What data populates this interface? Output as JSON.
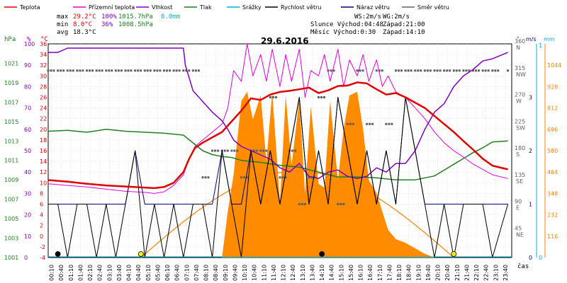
{
  "legend": [
    {
      "label": "Teplota",
      "color": "#e00000"
    },
    {
      "label": "Přízemní teplota",
      "color": "#e000e0"
    },
    {
      "label": "Vlhkost",
      "color": "#8000c0"
    },
    {
      "label": "Tlak",
      "color": "#208020"
    },
    {
      "label": "Srážky",
      "color": "#00b0d0"
    },
    {
      "label": "Rychlost větru",
      "color": "#000000"
    },
    {
      "label": "Náraz větru",
      "color": "#000080"
    },
    {
      "label": "Směr větru",
      "color": "#606060"
    }
  ],
  "stats": {
    "max_label": "max",
    "max_temp": "29.2°C",
    "max_hum": "100%",
    "max_press": "1015.7hPa",
    "max_rain": "0.0mm",
    "min_label": "min",
    "min_temp": "8.0°C",
    "min_hum": "36%",
    "min_press": "1008.5hPa",
    "avg_label": "avg",
    "avg_temp": "18.3°C"
  },
  "info": {
    "ws": "WS:2m/s",
    "wg": "WG:2m/s",
    "sun": "Slunce Východ:04:48",
    "sun_set": "Západ:21:00",
    "moon": "Měsíc  Východ:0:30",
    "moon_set": "Západ:14:10"
  },
  "date_title": "29.6.2016",
  "axis_units": {
    "hpa": "hPa",
    "pct": "%",
    "deg": "°C",
    "deg_r": "°",
    "ms": "m/s",
    "mm": "mm",
    "time": "čas"
  },
  "colors": {
    "temp": "#e00000",
    "ground": "#e000e0",
    "hum": "#8000c0",
    "press": "#208020",
    "rain": "#00b0d0",
    "wind": "#000000",
    "gust": "#000080",
    "dir": "#606060",
    "solar": "#ff8000",
    "solar_fill": "#ff8c00",
    "sun_dot": "#f0f000"
  },
  "chart_data": {
    "type": "line",
    "title": "29.6.2016",
    "x_ticks": [
      "00:10",
      "00:40",
      "01:10",
      "01:40",
      "02:10",
      "02:40",
      "03:10",
      "03:40",
      "04:10",
      "04:40",
      "05:10",
      "05:40",
      "06:10",
      "06:40",
      "07:10",
      "07:40",
      "08:10",
      "08:40",
      "09:10",
      "09:40",
      "10:10",
      "10:40",
      "11:10",
      "11:40",
      "12:10",
      "12:40",
      "13:10",
      "13:40",
      "14:10",
      "14:40",
      "15:10",
      "15:40",
      "16:10",
      "16:40",
      "17:10",
      "17:40",
      "18:10",
      "18:40",
      "19:10",
      "19:40",
      "20:10",
      "20:40",
      "21:10",
      "21:40",
      "22:10",
      "22:40",
      "23:10",
      "23:40"
    ],
    "axes": {
      "pressure_hpa": {
        "ticks": [
          "1001",
          "1003",
          "1005",
          "1007",
          "1009",
          "1011",
          "1013",
          "1015",
          "1017",
          "1019",
          "1021"
        ],
        "range": [
          1001,
          1023
        ]
      },
      "humidity_pct": {
        "ticks": [
          "0",
          "10",
          "20",
          "30",
          "40",
          "50",
          "60",
          "70",
          "80",
          "90",
          "100"
        ],
        "range": [
          0,
          100
        ]
      },
      "temperature_c": {
        "ticks": [
          "-4",
          "-2",
          "0",
          "2",
          "4",
          "6",
          "8",
          "10",
          "12",
          "14",
          "16",
          "18",
          "20",
          "22",
          "24",
          "26",
          "28",
          "30",
          "32",
          "34",
          "36"
        ],
        "range": [
          -4,
          36
        ]
      },
      "wind_dir_deg": {
        "ticks": [
          {
            "v": "45",
            "d": "NE"
          },
          {
            "v": "90",
            "d": "E"
          },
          {
            "v": "135",
            "d": "SE"
          },
          {
            "v": "180",
            "d": "S"
          },
          {
            "v": "225",
            "d": "SW"
          },
          {
            "v": "270",
            "d": "W"
          },
          {
            "v": "315",
            "d": "NW"
          },
          {
            "v": "360",
            "d": "N"
          }
        ],
        "range": [
          0,
          360
        ]
      },
      "wind_ms": {
        "ticks": [
          "0",
          "1",
          "2",
          "3"
        ],
        "range": [
          0,
          4
        ]
      },
      "rain_mm": {
        "ticks": [
          "0",
          "1"
        ],
        "range": [
          0,
          1
        ]
      },
      "solar": {
        "ticks": [
          "116",
          "232",
          "348",
          "464",
          "580",
          "696",
          "812",
          "928",
          "1044"
        ],
        "range": [
          0,
          1160
        ]
      }
    },
    "series": [
      {
        "name": "Teplota",
        "axis": "temperature_c",
        "x": [
          0,
          1,
          2,
          3,
          4,
          5,
          5.5,
          6,
          6.5,
          7,
          7.3,
          7.6,
          8,
          8.5,
          9,
          9.5,
          10,
          10.5,
          11,
          11.5,
          12,
          12.5,
          13,
          13.5,
          14,
          14.5,
          15,
          15.5,
          16,
          16.5,
          17,
          17.5,
          18,
          18.5,
          19,
          19.5,
          20,
          20.5,
          21,
          21.5,
          22,
          22.5,
          23,
          23.8
        ],
        "y": [
          10.5,
          10.2,
          9.8,
          9.5,
          9.3,
          9.1,
          9.0,
          9.2,
          10,
          12,
          14.5,
          16.5,
          17.5,
          18.5,
          19.5,
          21.5,
          23.5,
          25.8,
          25.5,
          26.5,
          27,
          27.2,
          27.5,
          27.8,
          26.8,
          27.3,
          28.1,
          28.2,
          28.8,
          28.6,
          27.5,
          26.5,
          26.8,
          26,
          25,
          24,
          22.5,
          21,
          19.5,
          17.8,
          16.2,
          14.5,
          13.2,
          12.5
        ]
      },
      {
        "name": "Přízemní teplota",
        "axis": "temperature_c",
        "x": [
          0,
          1,
          2,
          3,
          4,
          5,
          5.5,
          6,
          6.5,
          7,
          7.3,
          7.6,
          8,
          8.5,
          9,
          9.3,
          9.6,
          10,
          10.3,
          10.6,
          11,
          11.3,
          11.6,
          12,
          12.3,
          12.6,
          13,
          13.3,
          13.6,
          14,
          14.3,
          14.6,
          15,
          15.3,
          15.6,
          16,
          16.3,
          16.6,
          17,
          17.3,
          17.6,
          18,
          18.5,
          19,
          19.5,
          20,
          20.5,
          21,
          21.5,
          22,
          22.5,
          23,
          23.8
        ],
        "y": [
          9.8,
          9.5,
          9.2,
          8.8,
          8.4,
          8.2,
          8.0,
          8.3,
          9.5,
          11.5,
          14.5,
          16.8,
          18,
          19.5,
          21,
          24,
          31,
          29,
          36,
          30,
          34,
          29,
          35,
          28,
          34,
          29,
          35,
          26,
          31,
          30,
          34,
          29,
          35,
          28,
          33,
          30,
          34,
          29,
          33,
          28,
          30,
          27,
          26,
          24,
          22,
          19.5,
          17.5,
          16,
          14.8,
          13.5,
          12.5,
          11.5,
          10.8
        ]
      },
      {
        "name": "Vlhkost",
        "axis": "humidity_pct",
        "x": [
          0,
          0.5,
          1,
          2,
          3,
          4,
          5,
          6,
          7,
          7.1,
          7.5,
          8,
          8.5,
          9,
          9.3,
          9.6,
          10,
          10.5,
          11,
          11.5,
          12,
          12.5,
          13,
          13.5,
          14,
          14.5,
          15,
          15.5,
          16,
          16.5,
          17,
          17.5,
          18,
          18.5,
          19,
          19.5,
          20,
          20.5,
          21,
          21.5,
          22,
          22.5,
          23,
          23.8
        ],
        "y": [
          96,
          96,
          98,
          98,
          98,
          98,
          98,
          98,
          98,
          90,
          78,
          73,
          68,
          64,
          60,
          55,
          52,
          50,
          48,
          46,
          42,
          40,
          44,
          38,
          37,
          40,
          41,
          38,
          37,
          38,
          42,
          40,
          44,
          44,
          50,
          60,
          68,
          72,
          80,
          85,
          88,
          92,
          93,
          96
        ]
      },
      {
        "name": "Tlak",
        "axis": "pressure_hpa",
        "x": [
          0,
          1,
          2,
          3,
          4,
          5,
          6,
          7,
          7.5,
          8,
          8.5,
          9,
          9.5,
          10,
          11,
          12,
          13,
          14,
          15,
          16,
          17,
          18,
          19,
          20,
          20.5,
          21,
          21.5,
          22,
          22.5,
          23,
          23.8
        ],
        "y": [
          1014.0,
          1014.1,
          1013.9,
          1014.2,
          1014.0,
          1013.9,
          1013.8,
          1013.6,
          1012.8,
          1012.0,
          1011.6,
          1011.4,
          1011.3,
          1011.0,
          1010.8,
          1010.5,
          1010.3,
          1009.8,
          1009.3,
          1009.3,
          1009.2,
          1009.0,
          1009.0,
          1009.4,
          1010.0,
          1010.6,
          1011.2,
          1011.8,
          1012.3,
          1012.9,
          1013.0
        ]
      },
      {
        "name": "Rychlost větru",
        "axis": "wind_ms",
        "x": [
          0,
          0.5,
          1,
          1.5,
          2,
          2.5,
          3,
          3.5,
          4,
          4.5,
          5,
          5.5,
          6,
          6.5,
          7,
          7.5,
          8,
          8.5,
          9,
          9.5,
          10,
          10.5,
          11,
          11.5,
          12,
          12.5,
          13,
          13.5,
          14,
          14.5,
          15,
          15.5,
          16,
          16.5,
          17,
          17.5,
          18,
          18.5,
          19,
          19.5,
          20,
          20.5,
          21,
          21.5,
          22,
          22.5,
          23,
          23.8
        ],
        "y": [
          1,
          1,
          0,
          1,
          1,
          0,
          1,
          0,
          1,
          2,
          0,
          1,
          0,
          1,
          0,
          1,
          1,
          0,
          2,
          1,
          0,
          2,
          1,
          2,
          1,
          2,
          3,
          1,
          2,
          1,
          3,
          2,
          1,
          2,
          1,
          2,
          1,
          3,
          2,
          1,
          0,
          1,
          0,
          1,
          1,
          1,
          0,
          1
        ]
      },
      {
        "name": "Náraz větru",
        "axis": "wind_ms",
        "x": [
          0,
          0.5,
          1,
          1.5,
          2,
          2.5,
          3,
          3.5,
          4,
          4.5,
          5,
          5.5,
          6,
          6.5,
          7,
          7.5,
          8,
          8.5,
          9,
          9.5,
          10,
          10.5,
          11,
          11.5,
          12,
          12.5,
          13,
          13.5,
          14,
          14.5,
          15,
          15.5,
          16,
          16.5,
          17,
          17.5,
          18,
          18.5,
          19,
          19.5,
          20,
          20.5,
          21,
          21.5,
          22,
          22.5,
          23,
          23.8
        ],
        "y": [
          1,
          1,
          1,
          1,
          1,
          1,
          1,
          1,
          1,
          2,
          1,
          1,
          1,
          1,
          1,
          1,
          1,
          1,
          2,
          1,
          1,
          2,
          1,
          2,
          1,
          2,
          3,
          1,
          2,
          1,
          3,
          2,
          1,
          2,
          1,
          2,
          1,
          3,
          2,
          1,
          1,
          1,
          1,
          1,
          1,
          1,
          1,
          1
        ]
      },
      {
        "name": "Směr větru",
        "axis": "wind_dir_deg",
        "x": [
          0,
          0.5,
          1,
          1.5,
          2,
          2.5,
          3,
          3.5,
          4,
          4.5,
          5,
          5.5,
          6,
          6.5,
          7,
          7.5,
          8,
          8.5,
          9,
          9.5,
          10,
          10.5,
          11,
          11.5,
          12,
          12.5,
          13,
          13.5,
          14,
          14.5,
          15,
          15.5,
          16,
          16.5,
          17,
          17.5,
          18,
          18.5,
          19,
          19.5,
          20,
          20.5,
          21,
          21.5,
          22,
          22.5,
          23,
          23.8
        ],
        "y": [
          315,
          315,
          315,
          315,
          315,
          315,
          315,
          315,
          315,
          315,
          315,
          315,
          315,
          315,
          315,
          315,
          135,
          180,
          180,
          180,
          135,
          180,
          180,
          270,
          135,
          180,
          90,
          135,
          270,
          315,
          90,
          225,
          315,
          225,
          315,
          225,
          315,
          315,
          315,
          315,
          315,
          315,
          315,
          315,
          315,
          315,
          315,
          315
        ]
      },
      {
        "name": "Solar",
        "axis": "solar",
        "x": [
          9,
          9.3,
          9.6,
          10,
          10.3,
          10.6,
          11,
          11.3,
          11.6,
          12,
          12.3,
          12.6,
          13,
          13.3,
          13.6,
          14,
          14.3,
          14.6,
          15,
          15.3,
          15.6,
          16,
          16.3,
          16.6,
          17,
          17.3,
          17.6,
          18,
          18.5,
          19,
          19.5,
          20
        ],
        "y": [
          0,
          250,
          450,
          850,
          900,
          750,
          880,
          520,
          900,
          300,
          880,
          500,
          860,
          350,
          820,
          400,
          380,
          850,
          420,
          700,
          880,
          900,
          700,
          420,
          350,
          250,
          150,
          100,
          80,
          50,
          20,
          0
        ]
      }
    ]
  }
}
